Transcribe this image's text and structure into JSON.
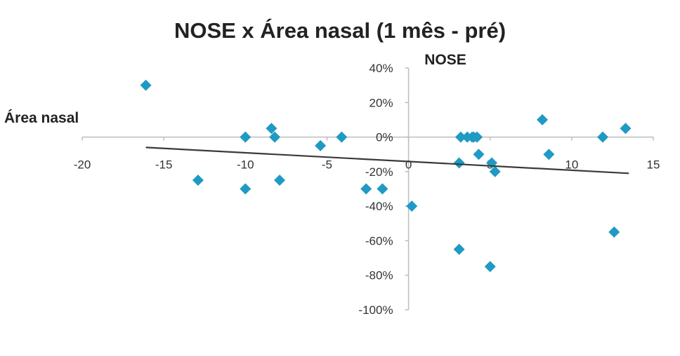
{
  "chart_data": {
    "type": "scatter",
    "title": "NOSE x Área nasal (1 mês - pré)",
    "xlabel": "Área nasal",
    "ylabel": "NOSE",
    "xlim": [
      -20,
      15
    ],
    "ylim": [
      -1.0,
      0.4
    ],
    "x_ticks": [
      -20,
      -15,
      -10,
      -5,
      0,
      5,
      10,
      15
    ],
    "x_tick_labels": [
      "-20",
      "-15",
      "-10",
      "-5",
      "0",
      "5",
      "10",
      "15"
    ],
    "y_ticks": [
      0.4,
      0.2,
      0.0,
      -0.2,
      -0.4,
      -0.6,
      -0.8,
      -1.0
    ],
    "y_tick_labels": [
      "40%",
      "20%",
      "0%",
      "-20%",
      "-40%",
      "-60%",
      "-80%",
      "-100%"
    ],
    "grid": false,
    "marker_color": "#1f9ac4",
    "trendline_color": "#3a3a3a",
    "points": [
      {
        "x": -16.1,
        "y": 0.3
      },
      {
        "x": -12.9,
        "y": -0.25
      },
      {
        "x": -10.0,
        "y": 0.0
      },
      {
        "x": -10.0,
        "y": -0.3
      },
      {
        "x": -8.4,
        "y": 0.05
      },
      {
        "x": -8.2,
        "y": 0.0
      },
      {
        "x": -7.9,
        "y": -0.25
      },
      {
        "x": -5.4,
        "y": -0.05
      },
      {
        "x": -4.1,
        "y": 0.0
      },
      {
        "x": -2.6,
        "y": -0.3
      },
      {
        "x": -1.6,
        "y": -0.3
      },
      {
        "x": 0.2,
        "y": -0.4
      },
      {
        "x": 3.1,
        "y": -0.15
      },
      {
        "x": 3.2,
        "y": 0.0
      },
      {
        "x": 3.6,
        "y": 0.0
      },
      {
        "x": 3.9,
        "y": 0.0
      },
      {
        "x": 4.0,
        "y": 0.0
      },
      {
        "x": 4.2,
        "y": 0.0
      },
      {
        "x": 4.3,
        "y": -0.1
      },
      {
        "x": 3.1,
        "y": -0.65
      },
      {
        "x": 5.1,
        "y": -0.15
      },
      {
        "x": 5.3,
        "y": -0.2
      },
      {
        "x": 5.0,
        "y": -0.75
      },
      {
        "x": 8.2,
        "y": 0.1
      },
      {
        "x": 8.6,
        "y": -0.1
      },
      {
        "x": 11.9,
        "y": 0.0
      },
      {
        "x": 12.6,
        "y": -0.55
      },
      {
        "x": 13.3,
        "y": 0.05
      }
    ],
    "trendline": {
      "x": [
        -16.1,
        13.5
      ],
      "y": [
        -0.06,
        -0.21
      ]
    }
  }
}
